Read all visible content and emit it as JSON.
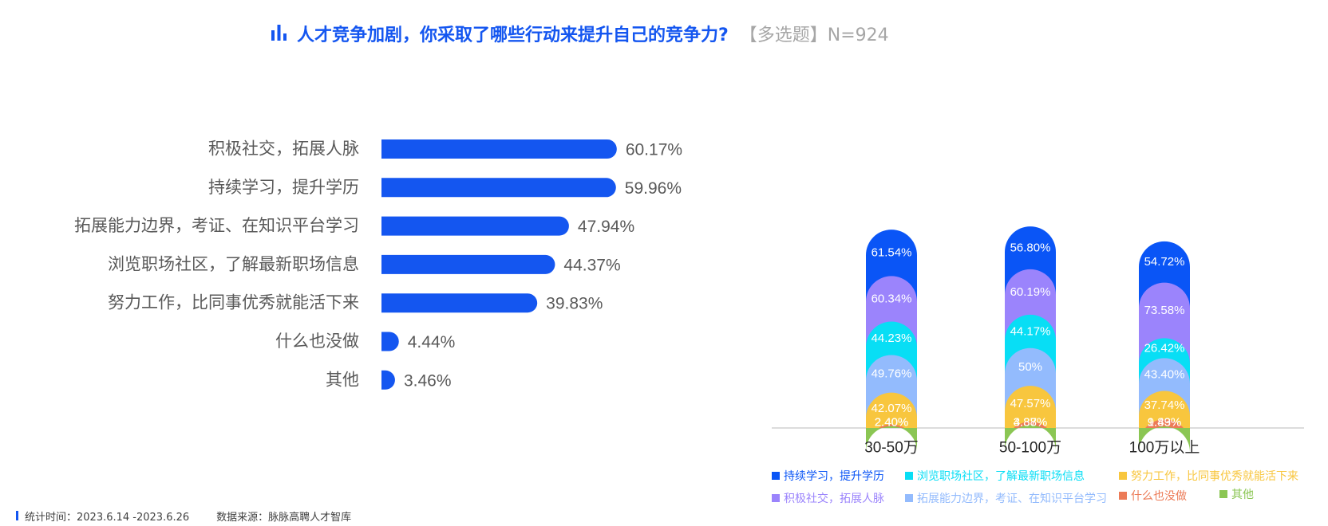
{
  "title": {
    "main": "人才竞争加剧，你采取了哪些行动来提升自己的竞争力?",
    "sub": "【多选题】N=924",
    "icon": "bar-chart-icon",
    "color": "#1456f0"
  },
  "footer": {
    "period": "统计时间：2023.6.14 -2023.6.26",
    "source": "数据来源：脉脉高聘人才智库"
  },
  "chart_data": [
    {
      "type": "bar",
      "orientation": "horizontal",
      "color": "#1456f0",
      "categories": [
        "积极社交，拓展人脉",
        "持续学习，提升学历",
        "拓展能力边界，考证、在知识平台学习",
        "浏览职场社区，了解最新职场信息",
        "努力工作，比同事优秀就能活下来",
        "什么也没做",
        "其他"
      ],
      "values": [
        60.17,
        59.96,
        47.94,
        44.37,
        39.83,
        4.44,
        3.46
      ],
      "labels": [
        "60.17%",
        "59.96%",
        "47.94%",
        "44.37%",
        "39.83%",
        "4.44%",
        "3.46%"
      ]
    },
    {
      "type": "bar",
      "orientation": "vertical",
      "stacked": true,
      "categories": [
        "30-50万",
        "50-100万",
        "100万以上"
      ],
      "legend_position": "bottom",
      "series": [
        {
          "name": "持续学习，提升学历",
          "color": "#0a55f6",
          "values": [
            61.54,
            56.8,
            54.72
          ],
          "labels": [
            "61.54%",
            "56.80%",
            "54.72%"
          ]
        },
        {
          "name": "积极社交，拓展人脉",
          "color": "#9b84fc",
          "values": [
            60.34,
            60.19,
            73.58
          ],
          "labels": [
            "60.34%",
            "60.19%",
            "73.58%"
          ]
        },
        {
          "name": "浏览职场社区，了解最新职场信息",
          "color": "#08def5",
          "values": [
            44.23,
            44.17,
            26.42
          ],
          "labels": [
            "44.23%",
            "44.17%",
            "26.42%"
          ]
        },
        {
          "name": "拓展能力边界，考证、在知识平台学习",
          "color": "#93bbfd",
          "values": [
            49.76,
            50,
            43.4
          ],
          "labels": [
            "49.76%",
            "50%",
            "43.40%"
          ]
        },
        {
          "name": "努力工作，比同事优秀就能活下来",
          "color": "#f8c63e",
          "values": [
            42.07,
            47.57,
            37.74
          ],
          "labels": [
            "42.07%",
            "47.57%",
            "37.74%"
          ]
        },
        {
          "name": "什么也没做",
          "color": "#ec7b57",
          "values": [
            2.4,
            4.37,
            9.43
          ],
          "labels": [
            "2.40%",
            "4.37%",
            "9.43%"
          ]
        },
        {
          "name": "其他",
          "color": "#8bc653",
          "values": [
            2.4,
            3.88,
            1.89
          ],
          "labels": [
            "2.40%",
            "3.88%",
            "1.89%"
          ]
        }
      ]
    }
  ]
}
